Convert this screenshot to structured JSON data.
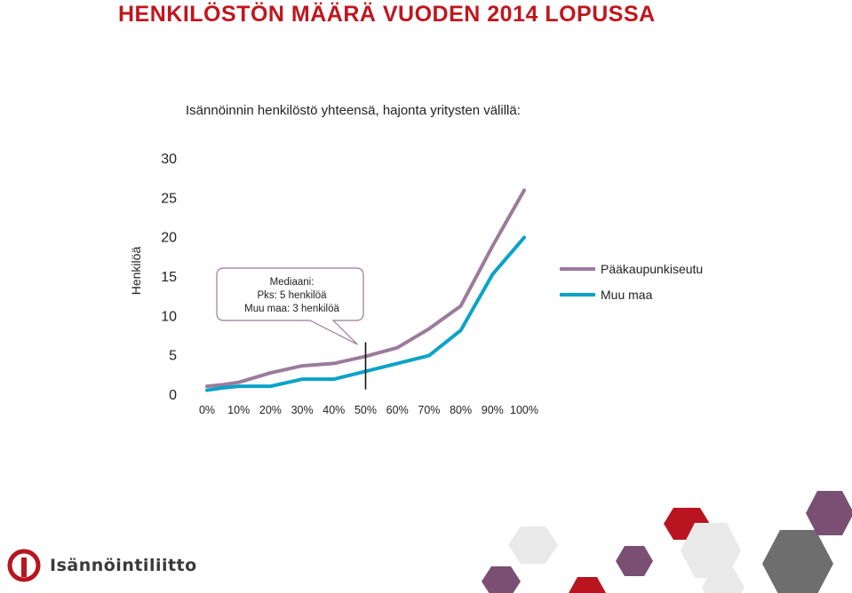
{
  "page": {
    "title": "HENKILÖSTÖN MÄÄRÄ VUODEN 2014 LOPUSSA",
    "subtitle": "Isännöinnin henkilöstö yhteensä, hajonta yritysten välillä:"
  },
  "chart_data": {
    "type": "line",
    "title": "",
    "xlabel": "",
    "ylabel": "Henkilöä",
    "x": [
      0,
      5,
      10,
      20,
      30,
      40,
      50,
      60,
      70,
      80,
      90,
      100
    ],
    "x_tick_labels": [
      "0%",
      "10%",
      "20%",
      "30%",
      "40%",
      "50%",
      "60%",
      "70%",
      "80%",
      "90%",
      "100%"
    ],
    "y_tick_labels": [
      "0",
      "5",
      "10",
      "15",
      "20",
      "25",
      "30"
    ],
    "xlim": [
      0,
      100
    ],
    "ylim": [
      0,
      30
    ],
    "grid": false,
    "legend_position": "right",
    "series": [
      {
        "name": "Pääkaupunkiseutu",
        "color": "#9b7b9b",
        "values": [
          1,
          1.2,
          1.5,
          2.7,
          3.6,
          3.9,
          4.8,
          5.9,
          8.3,
          11.2,
          18.8,
          25.9
        ]
      },
      {
        "name": "Muu maa",
        "color": "#0aa3c9",
        "values": [
          0.5,
          0.8,
          1,
          1,
          1.9,
          1.9,
          2.9,
          3.9,
          4.9,
          8.1,
          15.2,
          19.9
        ]
      }
    ],
    "annotation": {
      "lines": [
        "Mediaani:",
        "Pks: 5 henkilöä",
        "Muu maa: 3 henkilöä"
      ],
      "median_x": 50
    }
  },
  "footer": {
    "logo_text": "Isännöintiliitto",
    "colors": {
      "red": "#b81520",
      "purple": "#7a4f73",
      "grey": "#6e6e6e",
      "light_grey": "#e6e6e6"
    }
  }
}
